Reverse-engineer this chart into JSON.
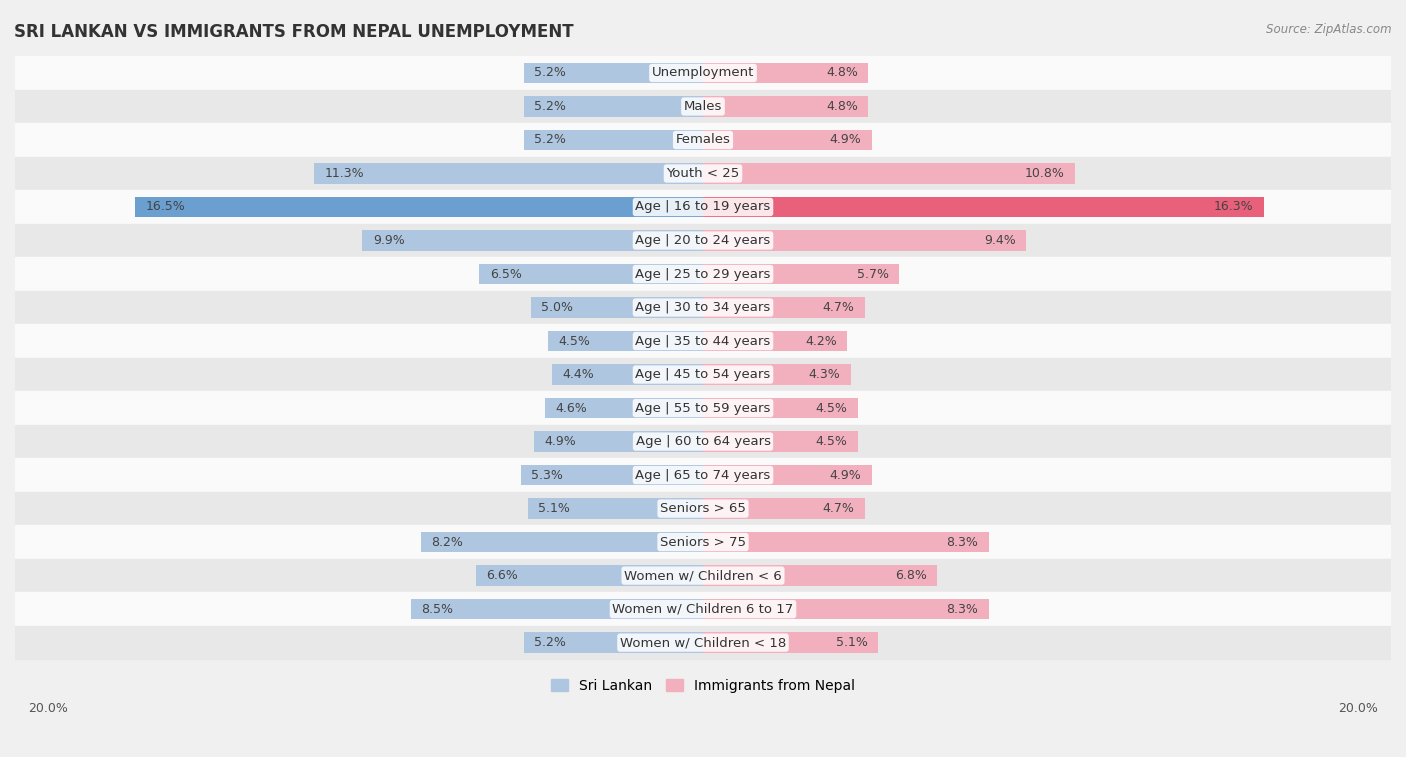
{
  "title": "SRI LANKAN VS IMMIGRANTS FROM NEPAL UNEMPLOYMENT",
  "source": "Source: ZipAtlas.com",
  "categories": [
    "Unemployment",
    "Males",
    "Females",
    "Youth < 25",
    "Age | 16 to 19 years",
    "Age | 20 to 24 years",
    "Age | 25 to 29 years",
    "Age | 30 to 34 years",
    "Age | 35 to 44 years",
    "Age | 45 to 54 years",
    "Age | 55 to 59 years",
    "Age | 60 to 64 years",
    "Age | 65 to 74 years",
    "Seniors > 65",
    "Seniors > 75",
    "Women w/ Children < 6",
    "Women w/ Children 6 to 17",
    "Women w/ Children < 18"
  ],
  "sri_lankan": [
    5.2,
    5.2,
    5.2,
    11.3,
    16.5,
    9.9,
    6.5,
    5.0,
    4.5,
    4.4,
    4.6,
    4.9,
    5.3,
    5.1,
    8.2,
    6.6,
    8.5,
    5.2
  ],
  "nepal": [
    4.8,
    4.8,
    4.9,
    10.8,
    16.3,
    9.4,
    5.7,
    4.7,
    4.2,
    4.3,
    4.5,
    4.5,
    4.9,
    4.7,
    8.3,
    6.8,
    8.3,
    5.1
  ],
  "sri_lankan_color": "#aec6e0",
  "nepal_color": "#f2b0bf",
  "highlight_sri_lankan_color": "#6a9fd0",
  "highlight_nepal_color": "#e8607a",
  "bar_height": 0.62,
  "axis_max": 20.0,
  "background_color": "#f0f0f0",
  "row_colors": [
    "#fafafa",
    "#e8e8e8"
  ],
  "label_fontsize": 9.5,
  "title_fontsize": 12,
  "legend_fontsize": 10,
  "value_fontsize": 9,
  "highlight_indices": [
    4
  ]
}
